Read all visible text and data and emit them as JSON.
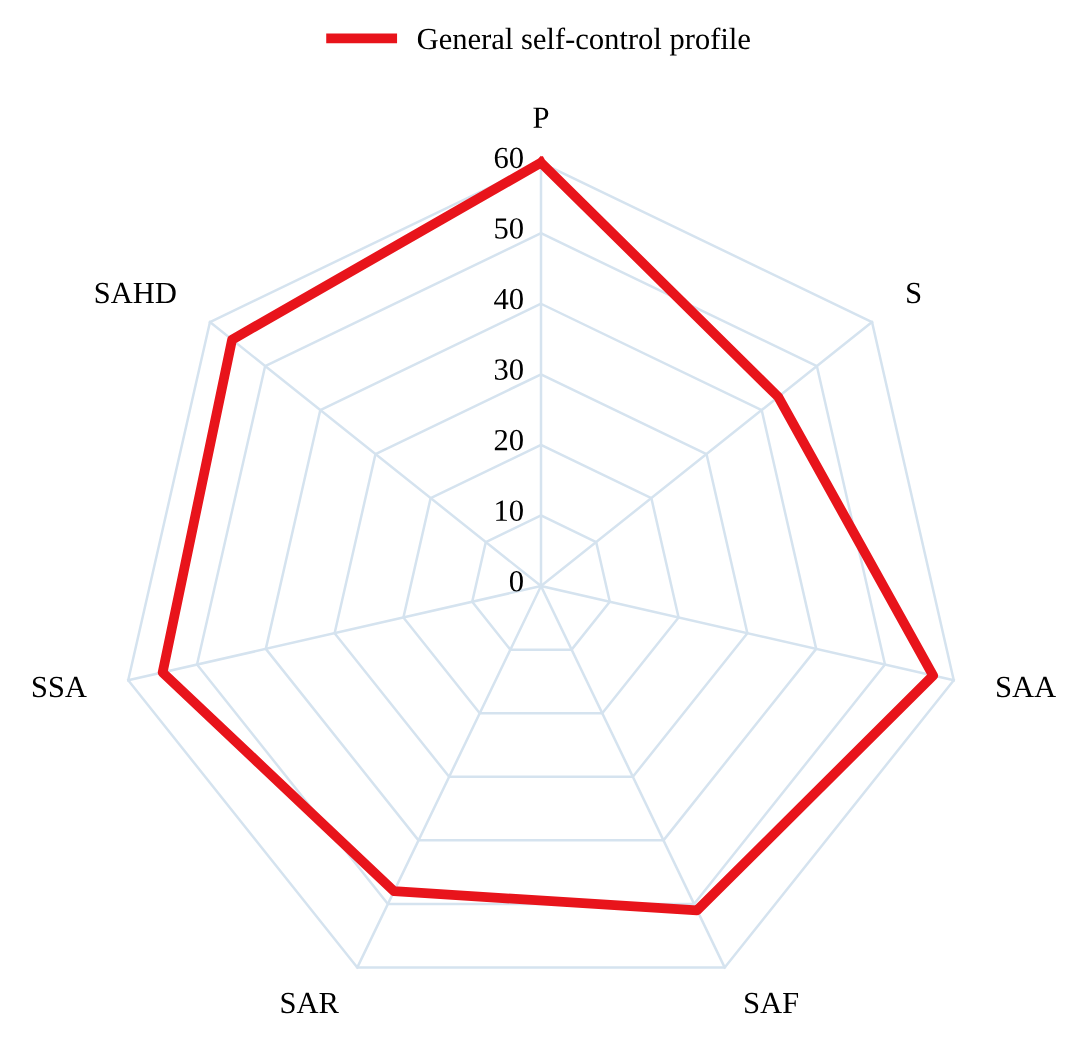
{
  "chart_data": {
    "type": "radar",
    "categories": [
      "P",
      "S",
      "SAA",
      "SAF",
      "SAR",
      "SSA",
      "SAHD"
    ],
    "series": [
      {
        "name": "General self-control profile",
        "color": "#e8141b",
        "values": [
          60,
          43,
          57,
          51,
          48,
          55,
          56
        ]
      }
    ],
    "ylim": [
      0,
      60
    ],
    "yticks": [
      0,
      10,
      20,
      30,
      40,
      50,
      60
    ],
    "grid": true,
    "legend": "top",
    "marker": "none",
    "line_style": "solid"
  }
}
